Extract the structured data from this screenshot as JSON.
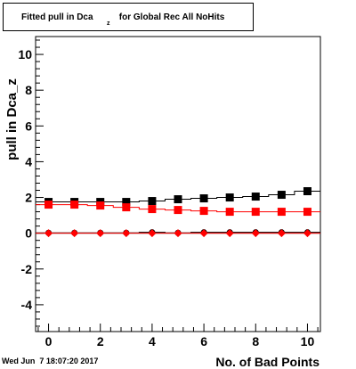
{
  "header": {
    "title_pre": "Fitted pull in Dca",
    "title_sub": "z",
    "title_post": " for Global Rec All NoHits"
  },
  "footer": {
    "datetime": "Wed Jun  7 18:07:20 2017"
  },
  "chart_data": {
    "type": "scatter",
    "title": "Fitted pull in Dca_z for Global Rec All NoHits",
    "xlabel": "No. of Bad Points",
    "ylabel": "pull in Dca_z",
    "xlim": [
      -0.5,
      10.5
    ],
    "ylim": [
      -5.5,
      11.0
    ],
    "x_ticks": [
      0,
      2,
      4,
      6,
      8,
      10
    ],
    "y_ticks": [
      -4,
      -2,
      0,
      2,
      4,
      6,
      8,
      10
    ],
    "grid": false,
    "legend": "none",
    "series": [
      {
        "color": "#000000",
        "marker": "square",
        "x": [
          0,
          1,
          2,
          3,
          4,
          5,
          6,
          7,
          8,
          9,
          10
        ],
        "y": [
          1.75,
          1.75,
          1.75,
          1.75,
          1.8,
          1.9,
          1.95,
          2.0,
          2.05,
          2.15,
          2.35
        ]
      },
      {
        "color": "#ff0000",
        "marker": "square",
        "x": [
          0,
          1,
          2,
          3,
          4,
          5,
          6,
          7,
          8,
          9,
          10
        ],
        "y": [
          1.6,
          1.6,
          1.55,
          1.45,
          1.35,
          1.3,
          1.25,
          1.2,
          1.2,
          1.2,
          1.2
        ]
      },
      {
        "color": "#000000",
        "marker": "circle",
        "x": [
          0,
          1,
          2,
          3,
          4,
          5,
          6,
          7,
          8,
          9,
          10
        ],
        "y": [
          0.02,
          0.02,
          0.02,
          0.02,
          0.05,
          0.02,
          0.05,
          0.05,
          0.05,
          0.05,
          0.05
        ]
      },
      {
        "color": "#ff0000",
        "marker": "diamond",
        "x": [
          0,
          1,
          2,
          3,
          4,
          5,
          6,
          7,
          8,
          9,
          10
        ],
        "y": [
          0.0,
          0.0,
          0.0,
          0.0,
          0.0,
          0.0,
          0.0,
          0.0,
          0.0,
          0.0,
          0.0
        ]
      }
    ]
  }
}
